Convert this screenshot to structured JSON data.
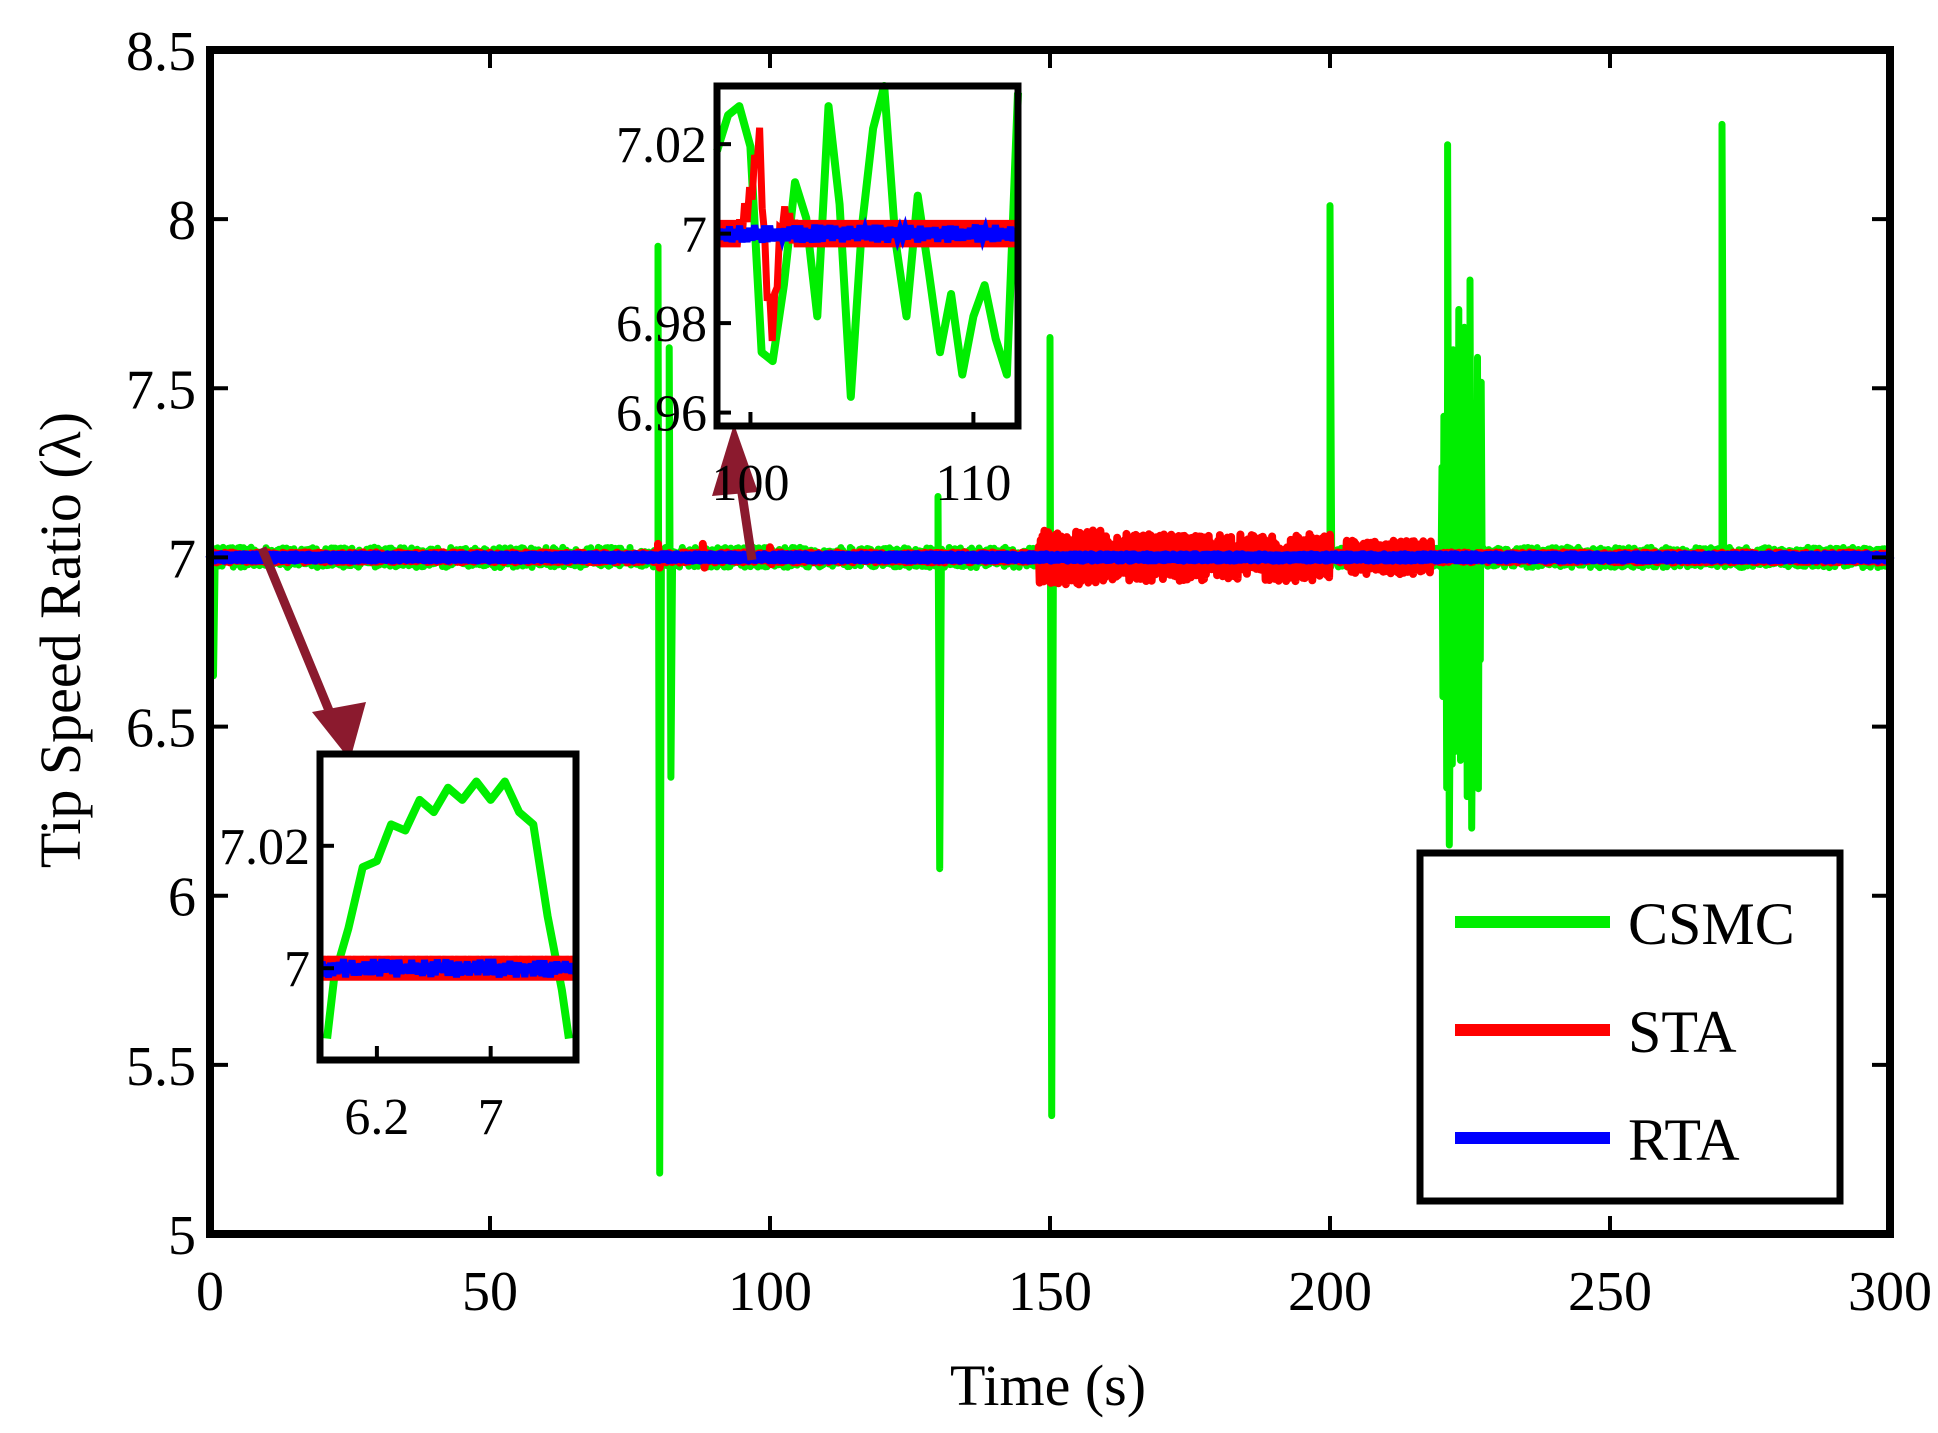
{
  "chart_data": {
    "type": "line",
    "xlabel": "Time (s)",
    "ylabel": "Tip Speed Ratio (λ)",
    "xlim": [
      0,
      300
    ],
    "ylim": [
      5,
      8.5
    ],
    "x_ticks": [
      "0",
      "50",
      "100",
      "150",
      "200",
      "250",
      "300"
    ],
    "y_ticks": [
      "5",
      "5.5",
      "6",
      "6.5",
      "7",
      "7.5",
      "8",
      "8.5"
    ],
    "grid": false,
    "legend_position": "bottom-right",
    "reference_value": 7,
    "series": [
      {
        "name": "CSMC",
        "color": "#00ee00",
        "noise_amplitude": 0.03,
        "spikes": [
          {
            "t": 0.3,
            "min": 6.65,
            "max": 7.0
          },
          {
            "t": 80,
            "min": 5.18,
            "max": 7.92
          },
          {
            "t": 82,
            "min": 6.35,
            "max": 7.62
          },
          {
            "t": 130,
            "min": 6.08,
            "max": 7.18
          },
          {
            "t": 150,
            "min": 5.35,
            "max": 7.65
          },
          {
            "t": 200,
            "min": 6.98,
            "max": 8.04
          },
          {
            "t": 221,
            "min": 6.15,
            "max": 8.22
          },
          {
            "t": 223,
            "min": 6.4,
            "max": 7.7
          },
          {
            "t": 225,
            "min": 6.2,
            "max": 7.82
          },
          {
            "t": 270,
            "min": 6.98,
            "max": 8.28
          }
        ],
        "burst_regions": [
          {
            "start": 220,
            "end": 227,
            "amplitude": 0.75
          }
        ]
      },
      {
        "name": "STA",
        "color": "#ff0000",
        "noise_amplitude": 0.015,
        "burst_regions": [
          {
            "start": 148,
            "end": 160,
            "amplitude": 0.08
          },
          {
            "start": 160,
            "end": 200,
            "amplitude": 0.07
          },
          {
            "start": 203,
            "end": 218,
            "amplitude": 0.05
          }
        ],
        "spikes": [
          {
            "t": 80,
            "min": 6.97,
            "max": 7.04
          },
          {
            "t": 88,
            "min": 6.97,
            "max": 7.04
          },
          {
            "t": 100,
            "min": 6.98,
            "max": 7.03
          }
        ]
      },
      {
        "name": "RTA",
        "color": "#0000ff",
        "noise_amplitude": 0.008
      }
    ],
    "insets": [
      {
        "name": "zoom-around-7s",
        "xlim": [
          5.8,
          7.6
        ],
        "ylim": [
          6.985,
          7.035
        ],
        "x_ticks": [
          6.2,
          7
        ],
        "x_tick_labels": [
          "6.2",
          "7"
        ],
        "y_ticks": [
          7.0,
          7.02
        ],
        "y_tick_labels": [
          "7",
          "7.02"
        ],
        "csmc_curve": {
          "x": [
            5.85,
            5.9,
            6.0,
            6.1,
            6.2,
            6.3,
            6.4,
            6.5,
            6.6,
            6.7,
            6.8,
            6.9,
            7.0,
            7.1,
            7.2,
            7.3,
            7.4,
            7.5,
            7.55
          ],
          "y": [
            6.99,
            6.997,
            7.008,
            7.015,
            7.019,
            7.022,
            7.024,
            7.026,
            7.027,
            7.028,
            7.029,
            7.029,
            7.029,
            7.029,
            7.027,
            7.022,
            7.01,
            6.995,
            6.99
          ]
        },
        "sta_band": 0.002,
        "rta_band": 0.0015
      },
      {
        "name": "zoom-around-100s",
        "xlim": [
          98.5,
          112
        ],
        "ylim": [
          6.957,
          7.033
        ],
        "x_ticks": [
          100,
          110
        ],
        "x_tick_labels": [
          "100",
          "110"
        ],
        "y_ticks": [
          6.96,
          6.98,
          7.0,
          7.02
        ],
        "y_tick_labels": [
          "6.96",
          "6.98",
          "7",
          "7.02"
        ],
        "csmc_curve": {
          "x": [
            98.5,
            99.0,
            99.5,
            100.0,
            100.5,
            101.0,
            101.5,
            102.0,
            102.5,
            103.0,
            103.5,
            104.0,
            104.5,
            105.0,
            105.5,
            106.0,
            106.5,
            107.0,
            107.5,
            108.0,
            108.5,
            109.0,
            109.5,
            110.0,
            110.5,
            111.0,
            111.5,
            112.0
          ],
          "y": [
            7.02,
            7.025,
            7.03,
            7.018,
            6.975,
            6.97,
            6.99,
            7.01,
            7.005,
            6.98,
            7.03,
            7.005,
            6.965,
            7.0,
            7.025,
            7.032,
            7.0,
            6.98,
            7.01,
            6.99,
            6.975,
            6.985,
            6.97,
            6.98,
            6.99,
            6.975,
            6.97,
            7.03
          ]
        },
        "sta_curve": {
          "x": [
            98.5,
            99.5,
            100.0,
            100.4,
            100.7,
            101.0,
            101.4,
            102.0,
            103.0,
            104.0,
            105.0,
            106.0,
            107.0,
            108.0,
            109.0,
            110.0,
            111.0,
            112.0
          ],
          "y": [
            7.0,
            7.0,
            7.008,
            7.022,
            6.99,
            6.978,
            7.004,
            7.0,
            7.0,
            7.0,
            7.0,
            7.0,
            7.0,
            7.0,
            7.0,
            7.0,
            7.0,
            7.0
          ]
        },
        "sta_band": 0.003,
        "rta_band": 0.002
      }
    ]
  },
  "colors": {
    "csmc": "#00ee00",
    "sta": "#ff0000",
    "rta": "#0000ff",
    "arrow": "#8b1a2e",
    "frame": "#000000"
  }
}
